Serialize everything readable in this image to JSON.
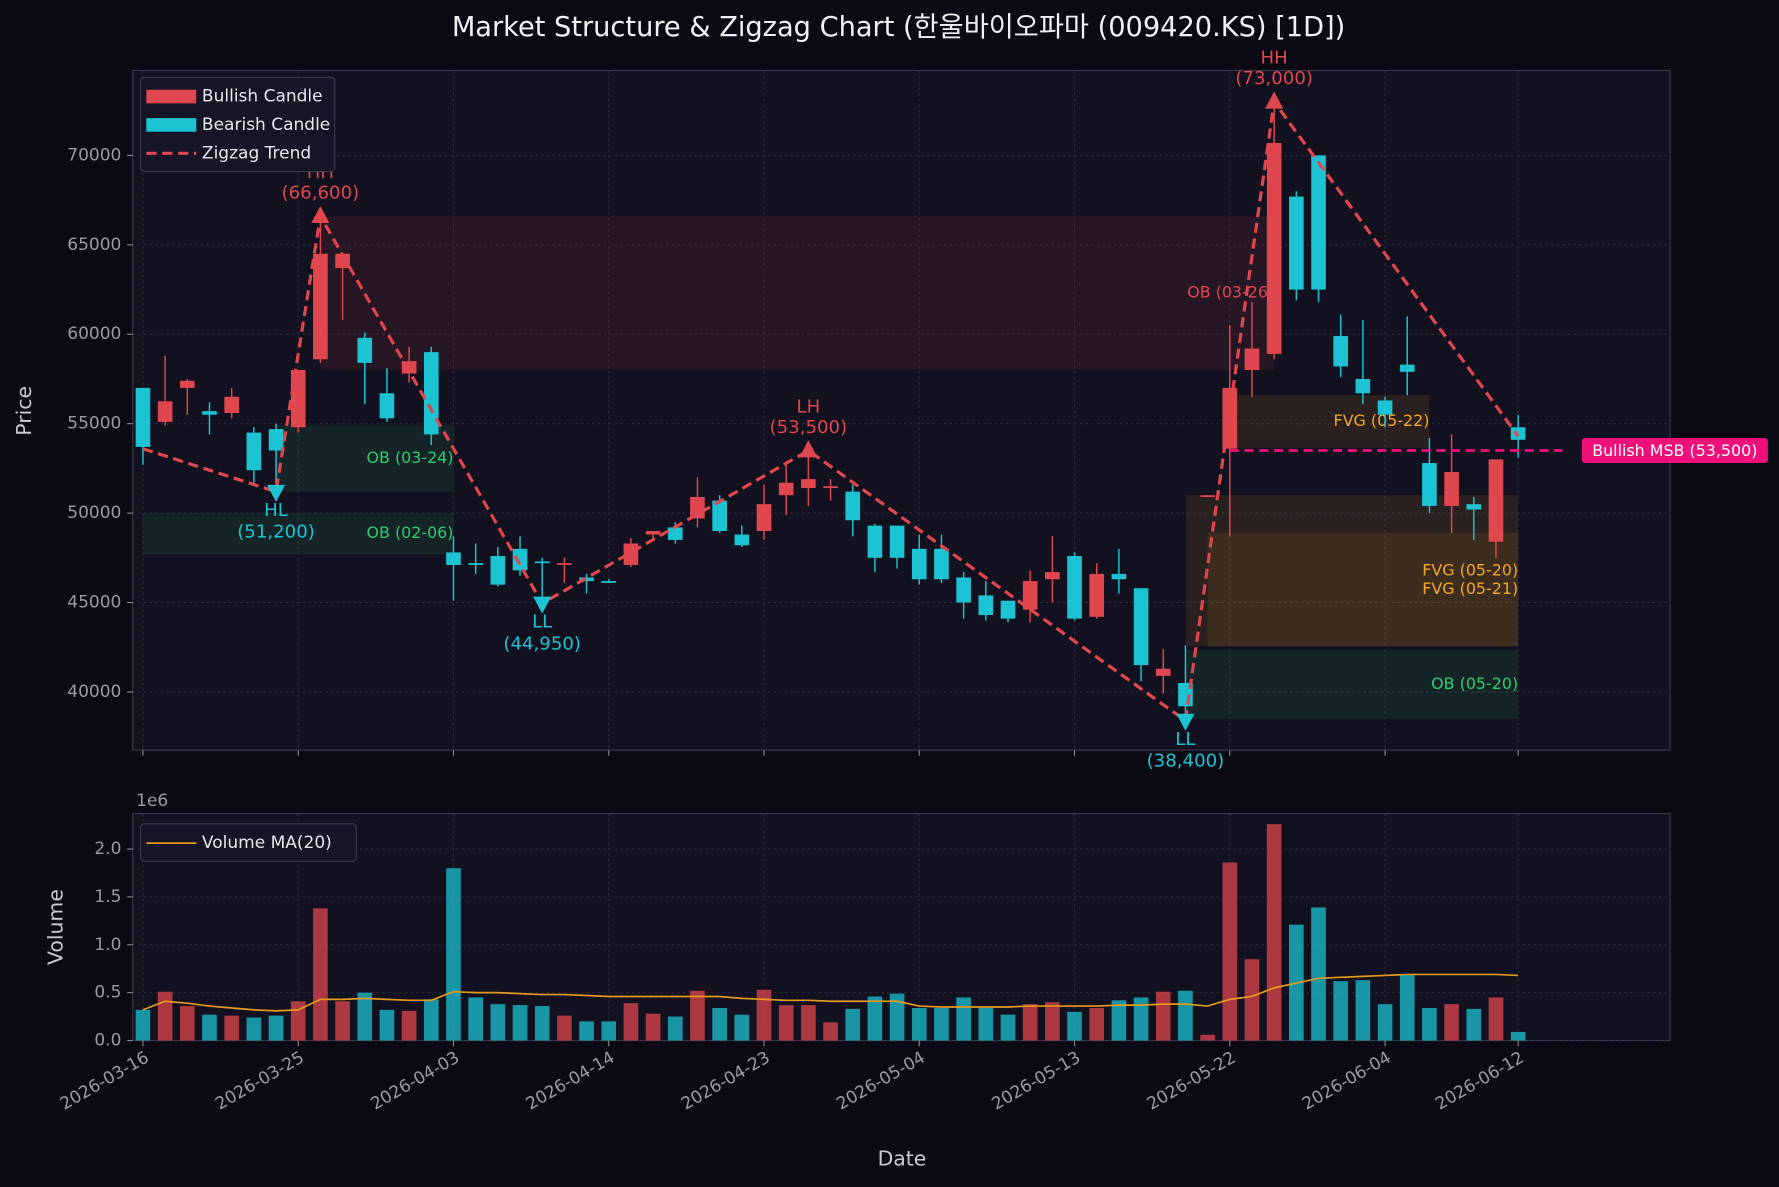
{
  "chart_data": [
    {
      "type": "candlestick",
      "title": "Market Structure & Zigzag Chart (한울바이오파마 (009420.KS) [1D])",
      "ylabel": "Price",
      "ylim": [
        36750,
        74750
      ],
      "yticks": [
        40000,
        45000,
        50000,
        55000,
        60000,
        65000,
        70000
      ],
      "grid": true,
      "legend": "upper left",
      "series": [
        {
          "name": "Bullish Candle",
          "color": "#e0464e"
        },
        {
          "name": "Bearish Candle",
          "color": "#1cc3d3"
        }
      ],
      "open": [
        57000,
        55100,
        57000,
        55700,
        55600,
        54500,
        54700,
        54800,
        58600,
        63700,
        59800,
        56700,
        57800,
        59000,
        47800,
        47200,
        47600,
        48000,
        47300,
        47100,
        46400,
        46200,
        47100,
        48800,
        49200,
        49700,
        50700,
        48800,
        49000,
        51000,
        51400,
        51400,
        51200,
        49300,
        49300,
        48000,
        48000,
        46400,
        45400,
        45100,
        44600,
        46300,
        47600,
        44200,
        46600,
        45800,
        40900,
        40500,
        50900,
        53600,
        58000,
        58900,
        67700,
        70000,
        59900,
        57500,
        56300,
        58300,
        52800,
        50400,
        50500,
        48400,
        54800
      ],
      "high": [
        57000,
        58800,
        57500,
        56200,
        57000,
        54800,
        55000,
        58000,
        66600,
        64500,
        60100,
        58100,
        59300,
        59300,
        48700,
        48300,
        48100,
        48700,
        47500,
        47500,
        46600,
        46300,
        48600,
        49000,
        49500,
        52000,
        51000,
        49300,
        51600,
        52900,
        53500,
        51900,
        51600,
        49400,
        49300,
        48800,
        48800,
        46700,
        46200,
        45100,
        46800,
        48700,
        47800,
        47200,
        48000,
        45800,
        42400,
        42600,
        51000,
        60500,
        61800,
        73000,
        68000,
        70000,
        61100,
        60800,
        56500,
        61000,
        54200,
        54400,
        50900,
        53000,
        55500
      ],
      "low": [
        52700,
        54900,
        55500,
        54400,
        55300,
        51700,
        51200,
        54500,
        58400,
        60800,
        56100,
        55100,
        57300,
        53800,
        45100,
        46600,
        45900,
        46500,
        44950,
        46100,
        45500,
        46100,
        47000,
        48600,
        48300,
        49200,
        48900,
        48100,
        48500,
        49900,
        50400,
        50700,
        48700,
        46700,
        46900,
        46000,
        46100,
        44100,
        44000,
        43900,
        43900,
        45000,
        44000,
        44100,
        45500,
        40600,
        39900,
        38400,
        50900,
        48700,
        56500,
        58600,
        61900,
        61800,
        57600,
        56100,
        54800,
        56600,
        50000,
        48900,
        48500,
        47500,
        53100
      ],
      "close": [
        53700,
        56250,
        57400,
        55500,
        56500,
        52400,
        53500,
        58000,
        64500,
        64500,
        58400,
        55300,
        58500,
        54400,
        47100,
        47100,
        46000,
        46800,
        47200,
        47200,
        46200,
        46100,
        48300,
        49000,
        48500,
        50900,
        49000,
        48200,
        50500,
        51700,
        51900,
        51500,
        49600,
        47500,
        47500,
        46300,
        46300,
        45000,
        44300,
        44100,
        46200,
        46700,
        44100,
        46600,
        46300,
        41500,
        41300,
        39200,
        51000,
        57000,
        59200,
        70700,
        62500,
        62500,
        58200,
        56700,
        55500,
        57900,
        50400,
        52300,
        50200,
        53000,
        54100
      ],
      "zigzag": {
        "name": "Zigzag Trend",
        "color": "#e0464e",
        "x": [
          0,
          6,
          8,
          18,
          30,
          47,
          51,
          62
        ],
        "values": [
          53600,
          51200,
          66600,
          44950,
          53500,
          38400,
          73000,
          54300
        ],
        "labels": [
          null,
          "HL",
          "HH",
          "LL",
          "LH",
          "LL",
          "HH",
          null
        ],
        "value_labels": [
          null,
          "(51,200)",
          "(66,600)",
          "(44,950)",
          "(53,500)",
          "(38,400)",
          "(73,000)",
          null
        ]
      },
      "zones": [
        {
          "label": "OB (03-26)",
          "color": "#e0464e",
          "x0": 8,
          "x1": 51,
          "low": 58000,
          "high": 66600
        },
        {
          "label": "OB (03-24)",
          "color": "#2ecc71",
          "x0": 6,
          "x1": 14,
          "low": 51200,
          "high": 54900
        },
        {
          "label": "OB (02-06)",
          "color": "#2ecc71",
          "x0": 0,
          "x1": 14,
          "low": 47700,
          "high": 50000
        },
        {
          "label": "FVG (05-22)",
          "color": "#f5a623",
          "x0": 49,
          "x1": 58,
          "low": 53650,
          "high": 56600
        },
        {
          "label": "FVG (05-20)",
          "color": "#f5a623",
          "x0": 47,
          "x1": 62,
          "low": 42550,
          "high": 51000
        },
        {
          "label": "FVG (05-21)",
          "color": "#f5a623",
          "x0": 48,
          "x1": 62,
          "low": 42550,
          "high": 48900
        },
        {
          "label": "OB (05-20)",
          "color": "#2ecc71",
          "x0": 47,
          "x1": 62,
          "low": 38500,
          "high": 42350
        }
      ],
      "msb": {
        "label": "Bullish MSB (53,500)",
        "value": 53500,
        "x0": 49,
        "x1": 64,
        "color": "#f0107a"
      }
    },
    {
      "type": "bar",
      "ylabel": "Volume",
      "offset_label": "1e6",
      "xlabel": "Date",
      "xlim": [
        -0.46,
        68.85
      ],
      "ylim": [
        0,
        2.37
      ],
      "yticks": [
        {
          "value": 0,
          "label": "0.0"
        },
        0.5,
        {
          "value": 1,
          "label": "1.0"
        },
        1.5,
        {
          "value": 2,
          "label": "2.0"
        }
      ],
      "grid": true,
      "legend": "upper left",
      "categories": [
        "2026-03-16",
        null,
        null,
        null,
        null,
        null,
        null,
        "2026-03-25",
        null,
        null,
        null,
        null,
        null,
        null,
        "2026-04-03",
        null,
        null,
        null,
        null,
        null,
        null,
        "2026-04-14",
        null,
        null,
        null,
        null,
        null,
        null,
        "2026-04-23",
        null,
        null,
        null,
        null,
        null,
        null,
        "2026-05-04",
        null,
        null,
        null,
        null,
        null,
        null,
        "2026-05-13",
        null,
        null,
        null,
        null,
        null,
        null,
        "2026-05-22",
        null,
        null,
        null,
        null,
        null,
        null,
        "2026-06-04",
        null,
        null,
        null,
        null,
        null,
        "2026-06-12"
      ],
      "values": [
        0.32,
        0.51,
        0.36,
        0.27,
        0.26,
        0.24,
        0.26,
        0.41,
        1.38,
        0.41,
        0.5,
        0.32,
        0.31,
        0.43,
        1.8,
        0.45,
        0.38,
        0.37,
        0.36,
        0.26,
        0.2,
        0.2,
        0.39,
        0.28,
        0.25,
        0.52,
        0.34,
        0.27,
        0.53,
        0.37,
        0.37,
        0.19,
        0.33,
        0.46,
        0.49,
        0.34,
        0.34,
        0.45,
        0.34,
        0.27,
        0.38,
        0.4,
        0.3,
        0.34,
        0.42,
        0.45,
        0.51,
        0.52,
        0.06,
        1.86,
        0.85,
        2.26,
        1.21,
        1.39,
        0.62,
        0.63,
        0.38,
        0.69,
        0.34,
        0.38,
        0.33,
        0.45,
        0.09
      ],
      "series": [
        {
          "name": "Volume MA(20)",
          "color": "#e39a1c",
          "values": [
            0.32,
            0.41,
            0.39,
            0.36,
            0.34,
            0.32,
            0.31,
            0.32,
            0.43,
            0.43,
            0.44,
            0.43,
            0.42,
            0.42,
            0.51,
            0.5,
            0.5,
            0.49,
            0.48,
            0.48,
            0.47,
            0.46,
            0.46,
            0.46,
            0.46,
            0.46,
            0.46,
            0.44,
            0.43,
            0.42,
            0.42,
            0.41,
            0.41,
            0.41,
            0.41,
            0.36,
            0.35,
            0.35,
            0.35,
            0.35,
            0.36,
            0.36,
            0.36,
            0.36,
            0.37,
            0.37,
            0.38,
            0.38,
            0.36,
            0.43,
            0.46,
            0.55,
            0.6,
            0.65,
            0.66,
            0.67,
            0.68,
            0.69,
            0.69,
            0.69,
            0.69,
            0.69,
            0.68
          ]
        }
      ]
    }
  ]
}
